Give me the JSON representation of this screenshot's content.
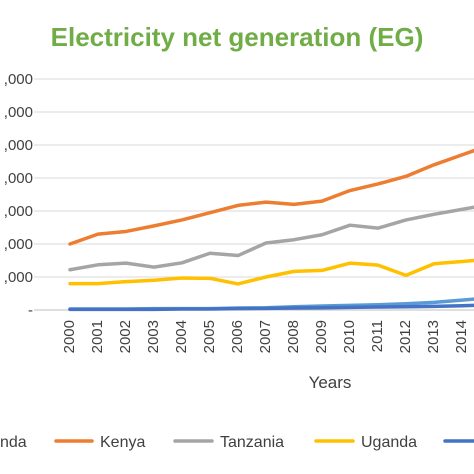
{
  "chart_data": {
    "type": "line",
    "title": "Electricity net generation (EG)",
    "xlabel": "Years",
    "ylabel": "",
    "x": [
      "2000",
      "2001",
      "2002",
      "2003",
      "2004",
      "2005",
      "2006",
      "2007",
      "2008",
      "2009",
      "2010",
      "2011",
      "2012",
      "2013",
      "2014"
    ],
    "y_tick_labels": [
      ",000",
      ",000",
      ",000",
      ",000",
      ",000",
      ",000",
      ",000",
      "-"
    ],
    "y_tick_label_values": [
      7,
      6,
      5,
      4,
      3,
      2,
      1,
      0
    ],
    "ylim": [
      0,
      7
    ],
    "grid": true,
    "legend_position": "bottom",
    "series": [
      {
        "name": "nda",
        "color": "#5B9BD5",
        "values": [
          0.03,
          0.03,
          0.03,
          0.04,
          0.04,
          0.04,
          0.06,
          0.07,
          0.1,
          0.12,
          0.14,
          0.16,
          0.19,
          0.23,
          0.3
        ]
      },
      {
        "name": "Kenya",
        "color": "#ED7D31",
        "values": [
          2.0,
          2.3,
          2.38,
          2.55,
          2.73,
          2.95,
          3.17,
          3.27,
          3.2,
          3.3,
          3.62,
          3.82,
          4.05,
          4.4,
          4.7
        ]
      },
      {
        "name": "Tanzania",
        "color": "#A5A5A5",
        "values": [
          1.22,
          1.37,
          1.42,
          1.3,
          1.43,
          1.72,
          1.65,
          2.03,
          2.13,
          2.28,
          2.57,
          2.48,
          2.73,
          2.9,
          3.05
        ]
      },
      {
        "name": "Uganda",
        "color": "#FFC000",
        "values": [
          0.8,
          0.8,
          0.86,
          0.9,
          0.97,
          0.96,
          0.79,
          1.0,
          1.17,
          1.2,
          1.42,
          1.36,
          1.05,
          1.4,
          1.47
        ]
      },
      {
        "name": "",
        "color": "#4472C4",
        "values": [
          0.02,
          0.02,
          0.02,
          0.02,
          0.03,
          0.03,
          0.04,
          0.05,
          0.06,
          0.07,
          0.08,
          0.09,
          0.1,
          0.11,
          0.13
        ]
      }
    ]
  },
  "colors": {
    "title": "#70AD47",
    "grid": "#D9D9D9",
    "text": "#404040"
  }
}
